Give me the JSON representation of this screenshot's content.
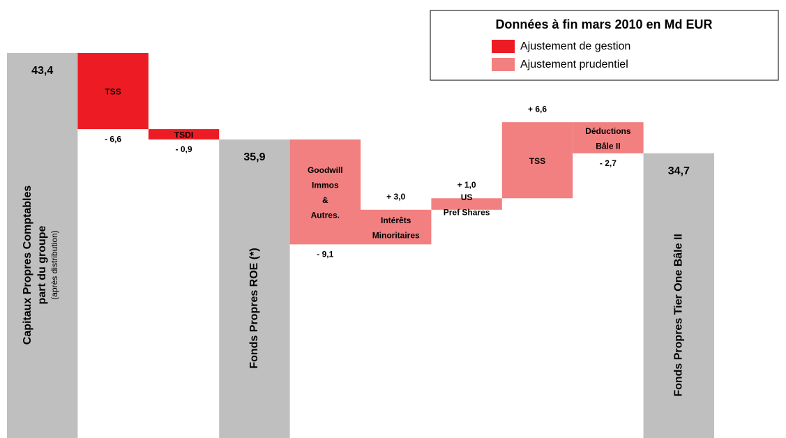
{
  "chart_data": {
    "type": "waterfall",
    "legend": {
      "title": "Données à fin mars 2010 en Md EUR",
      "items": [
        {
          "name": "Ajustement de gestion",
          "color": "#ed1c24"
        },
        {
          "name": "Ajustement prudentiel",
          "color": "#f28080"
        }
      ]
    },
    "categories": [
      [
        "Capitaux Propres Comptables",
        "part du groupe"
      ],
      [
        "TSS"
      ],
      [
        "TSDI"
      ],
      [
        "Fonds Propres ROE (*)"
      ],
      [
        "Goodwill",
        "Immos",
        "&",
        "Autres."
      ],
      [
        "Intérêts",
        "Minoritaires"
      ],
      [
        "US",
        "Pref Shares"
      ],
      [
        "TSS"
      ],
      [
        "Déductions",
        "Bâle II"
      ],
      [
        "Fonds Propres Tier One Bâle II"
      ]
    ],
    "category_notes": [
      "(après distribution)",
      null,
      null,
      null,
      null,
      null,
      null,
      null,
      null,
      null
    ],
    "measures": [
      "total",
      "relative",
      "relative",
      "total",
      "relative",
      "relative",
      "relative",
      "relative",
      "relative",
      "total"
    ],
    "values": [
      43.4,
      -6.6,
      -0.9,
      35.9,
      -9.1,
      3.0,
      1.0,
      6.6,
      -2.7,
      34.7
    ],
    "value_labels": [
      "43,4",
      "- 6,6",
      "- 0,9",
      "35,9",
      "- 9,1",
      "+ 3,0",
      "+ 1,0",
      "+ 6,6",
      "- 2,7",
      "34,7"
    ],
    "colors": [
      "#bfbfbf",
      "#ed1c24",
      "#ed1c24",
      "#bfbfbf",
      "#f28080",
      "#f28080",
      "#f28080",
      "#f28080",
      "#f28080",
      "#bfbfbf"
    ],
    "ylim": [
      10,
      48
    ]
  }
}
